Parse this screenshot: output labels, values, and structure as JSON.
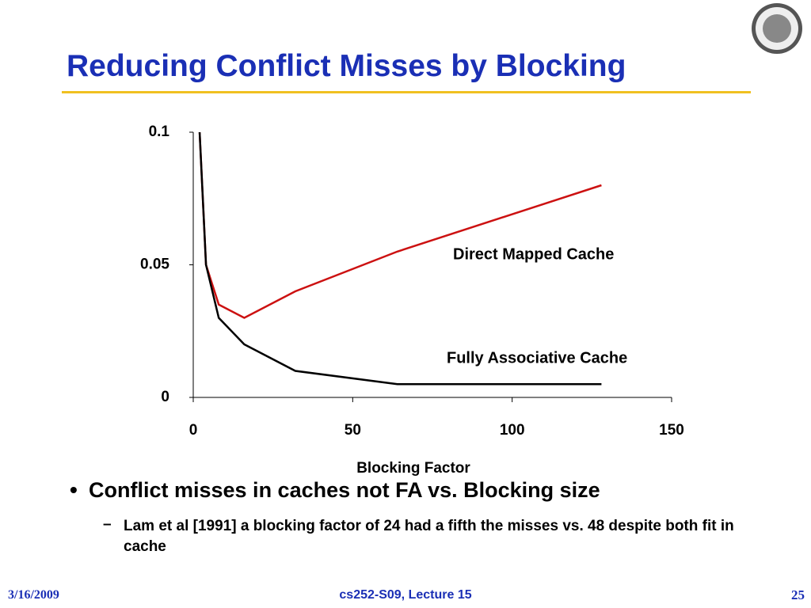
{
  "header": {
    "title": "Reducing Conflict Misses by Blocking"
  },
  "chart_data": {
    "type": "line",
    "x_label": "Blocking Factor",
    "x": [
      2,
      4,
      8,
      16,
      32,
      64,
      128
    ],
    "series": [
      {
        "name": "Direct Mapped Cache",
        "color": "#cc1111",
        "values": [
          0.1,
          0.05,
          0.035,
          0.03,
          0.04,
          0.055,
          0.08
        ]
      },
      {
        "name": "Fully Associative Cache",
        "color": "#000000",
        "values": [
          0.1,
          0.05,
          0.03,
          0.02,
          0.01,
          0.005,
          0.005
        ]
      }
    ],
    "xlim": [
      0,
      150
    ],
    "xticks": [
      0,
      50,
      100,
      150
    ],
    "ylim": [
      0,
      0.1
    ],
    "yticks": [
      0,
      0.05,
      0.1
    ],
    "grid": false
  },
  "bullets": [
    {
      "marker": "•",
      "text": "Conflict misses in caches not FA vs. Blocking size",
      "sub": [
        {
          "marker": "–",
          "text": "Lam et al [1991] a blocking factor of 24 had a fifth the  misses vs. 48 despite both fit in cache"
        }
      ]
    }
  ],
  "footer": {
    "date": "3/16/2009",
    "course": "cs252-S09, Lecture 15",
    "page": "25"
  }
}
